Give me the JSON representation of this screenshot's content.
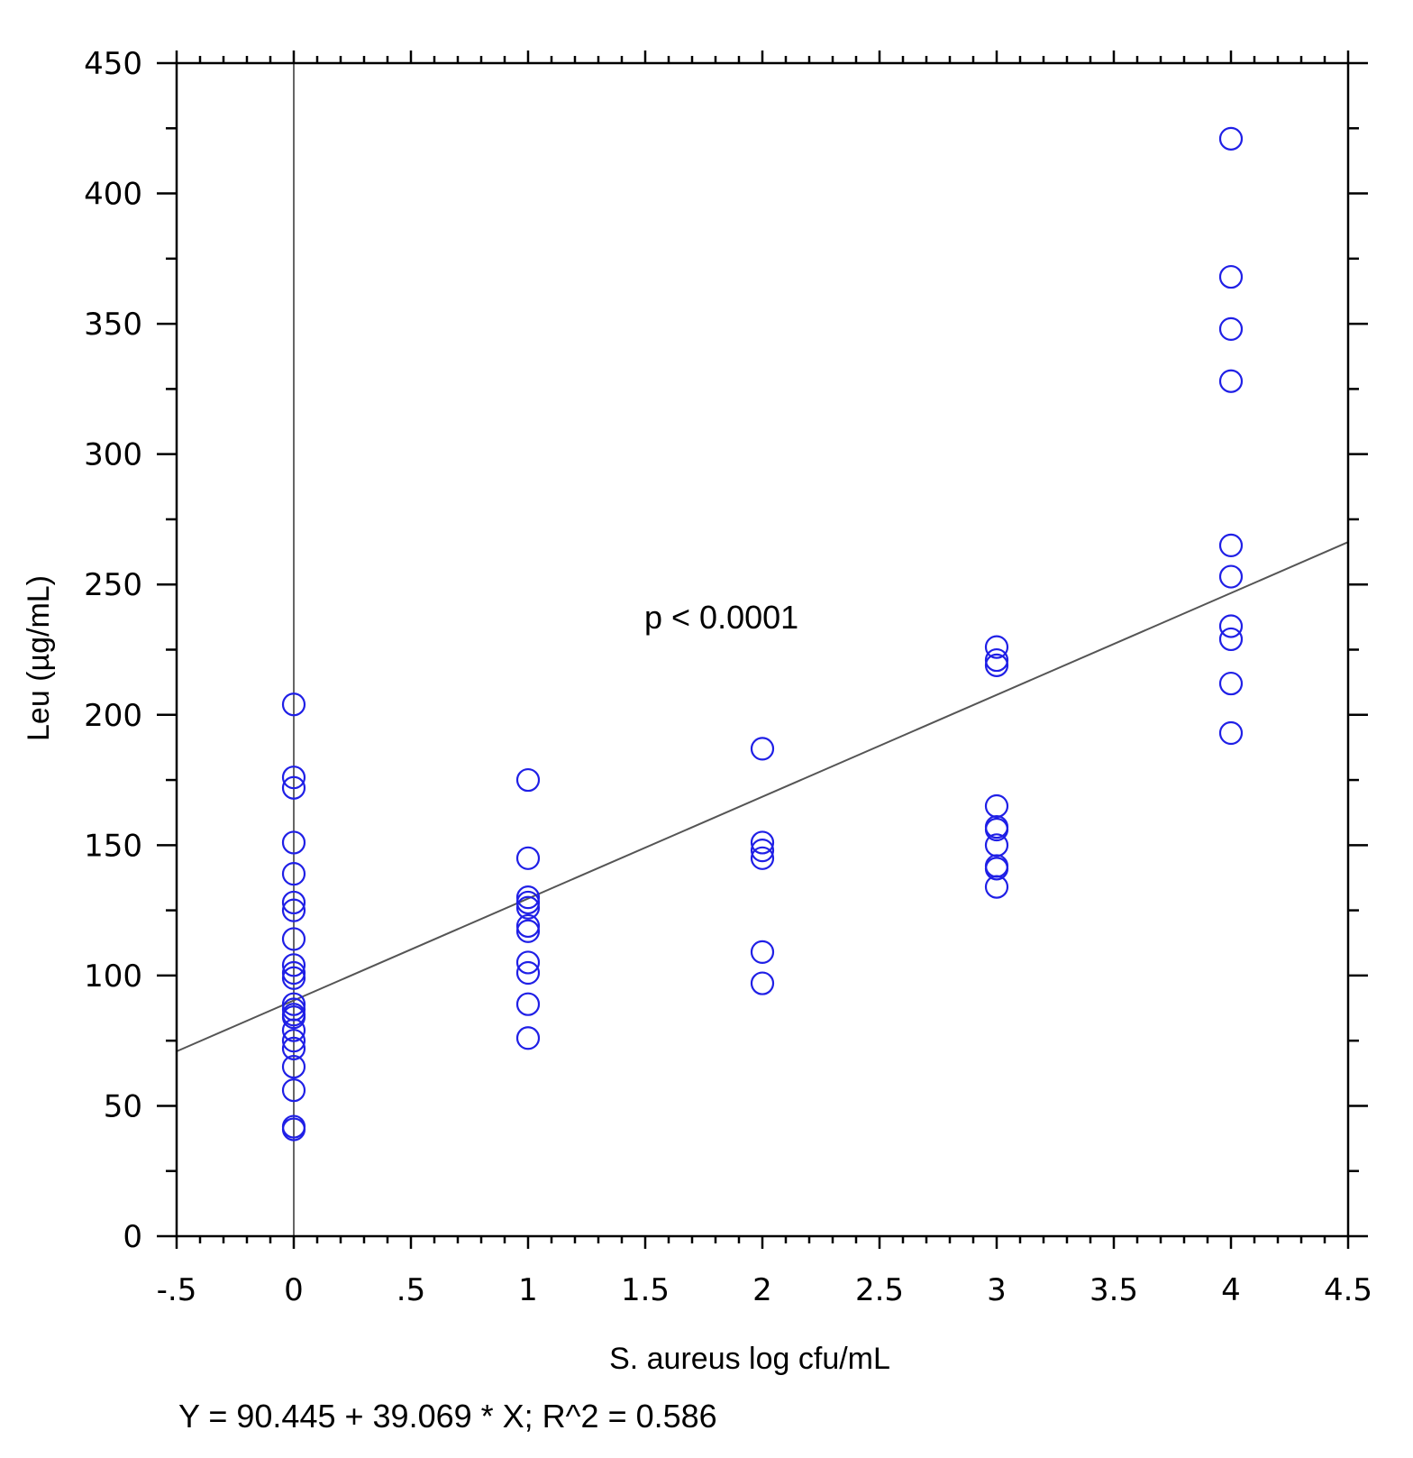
{
  "chart_data": {
    "type": "scatter",
    "title": "",
    "xlabel": "S. aureus log cfu/mL",
    "ylabel": "Leu (µg/mL)",
    "xlim": [
      -0.5,
      4.5
    ],
    "ylim": [
      0,
      450
    ],
    "x_ticks": [
      -0.5,
      0,
      0.5,
      1,
      1.5,
      2,
      2.5,
      3,
      3.5,
      4,
      4.5
    ],
    "x_tick_labels": [
      "-.5",
      "0",
      ".5",
      "1",
      "1.5",
      "2",
      "2.5",
      "3",
      "3.5",
      "4",
      "4.5"
    ],
    "y_ticks": [
      0,
      50,
      100,
      150,
      200,
      250,
      300,
      350,
      400,
      450
    ],
    "y_tick_labels": [
      "0",
      "50",
      "100",
      "150",
      "200",
      "250",
      "300",
      "350",
      "400",
      "450"
    ],
    "grid": false,
    "series": [
      {
        "marker": "open-circle",
        "color": "#1f1fe6",
        "points": [
          [
            0,
            204
          ],
          [
            0,
            176
          ],
          [
            0,
            172
          ],
          [
            0,
            151
          ],
          [
            0,
            139
          ],
          [
            0,
            128
          ],
          [
            0,
            125
          ],
          [
            0,
            114
          ],
          [
            0,
            104
          ],
          [
            0,
            101
          ],
          [
            0,
            99
          ],
          [
            0,
            89
          ],
          [
            0,
            87
          ],
          [
            0,
            85
          ],
          [
            0,
            84
          ],
          [
            0,
            79
          ],
          [
            0,
            75
          ],
          [
            0,
            72
          ],
          [
            0,
            65
          ],
          [
            0,
            56
          ],
          [
            0,
            42
          ],
          [
            0,
            41
          ],
          [
            1,
            175
          ],
          [
            1,
            145
          ],
          [
            1,
            130
          ],
          [
            1,
            128
          ],
          [
            1,
            126
          ],
          [
            1,
            119
          ],
          [
            1,
            117
          ],
          [
            1,
            105
          ],
          [
            1,
            101
          ],
          [
            1,
            89
          ],
          [
            1,
            76
          ],
          [
            2,
            187
          ],
          [
            2,
            151
          ],
          [
            2,
            148
          ],
          [
            2,
            145
          ],
          [
            2,
            109
          ],
          [
            2,
            97
          ],
          [
            3,
            226
          ],
          [
            3,
            221
          ],
          [
            3,
            219
          ],
          [
            3,
            165
          ],
          [
            3,
            157
          ],
          [
            3,
            156
          ],
          [
            3,
            150
          ],
          [
            3,
            142
          ],
          [
            3,
            141
          ],
          [
            3,
            134
          ],
          [
            4,
            421
          ],
          [
            4,
            368
          ],
          [
            4,
            348
          ],
          [
            4,
            328
          ],
          [
            4,
            265
          ],
          [
            4,
            253
          ],
          [
            4,
            234
          ],
          [
            4,
            229
          ],
          [
            4,
            212
          ],
          [
            4,
            193
          ]
        ]
      }
    ],
    "fit_line": {
      "intercept": 90.445,
      "slope": 39.069,
      "color": "#555555"
    },
    "reference_line": {
      "x": 0,
      "color": "#666666"
    },
    "annotation": "p < 0.0001",
    "equation": "Y = 90.445 + 39.069 * X; R^2 = 0.586"
  }
}
